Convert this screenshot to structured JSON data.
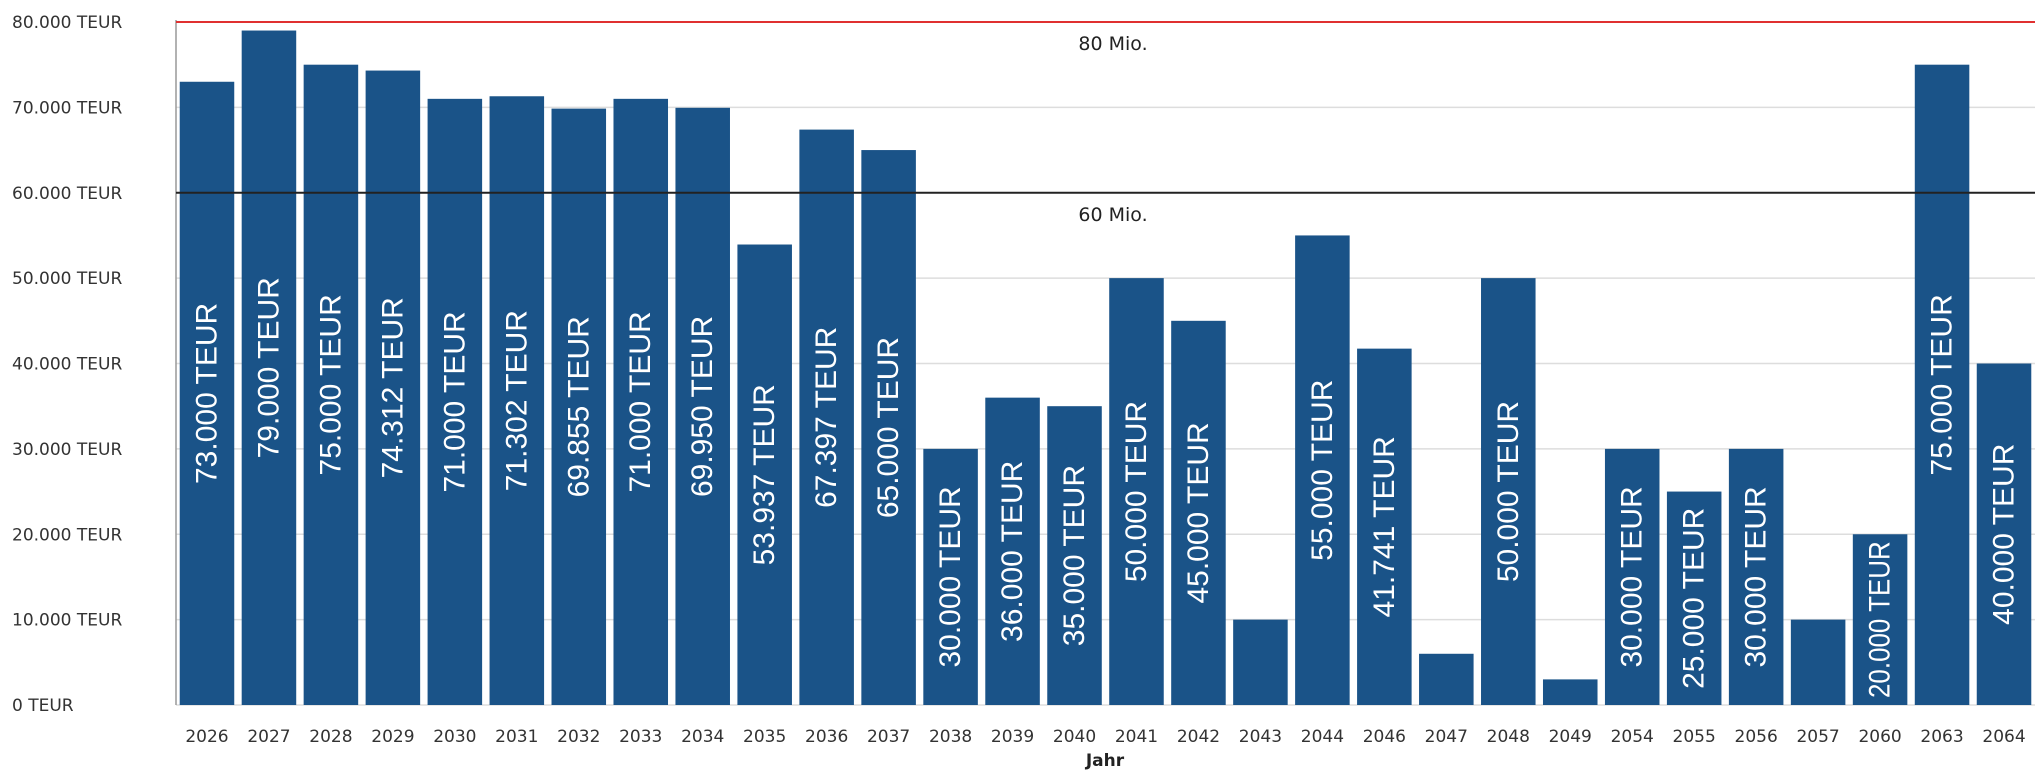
{
  "chart_data": {
    "type": "bar",
    "categories": [
      "2026",
      "2027",
      "2028",
      "2029",
      "2030",
      "2031",
      "2032",
      "2033",
      "2034",
      "2035",
      "2036",
      "2037",
      "2038",
      "2039",
      "2040",
      "2041",
      "2042",
      "2043",
      "2044",
      "2046",
      "2047",
      "2048",
      "2049",
      "2054",
      "2055",
      "2056",
      "2057",
      "2060",
      "2063",
      "2064"
    ],
    "values": [
      73000,
      79000,
      75000,
      74312,
      71000,
      71302,
      69855,
      71000,
      69950,
      53937,
      67397,
      65000,
      30000,
      36000,
      35000,
      50000,
      45000,
      10000,
      55000,
      41741,
      6000,
      50000,
      3000,
      30000,
      25000,
      30000,
      10000,
      20000,
      75000,
      40000
    ],
    "data_labels": [
      "73.000 TEUR",
      "79.000 TEUR",
      "75.000 TEUR",
      "74.312 TEUR",
      "71.000 TEUR",
      "71.302 TEUR",
      "69.855 TEUR",
      "71.000 TEUR",
      "69.950 TEUR",
      "53.937 TEUR",
      "67.397 TEUR",
      "65.000 TEUR",
      "30.000 TEUR",
      "36.000 TEUR",
      "35.000 TEUR",
      "50.000 TEUR",
      "45.000 TEUR",
      "",
      "55.000 TEUR",
      "41.741 TEUR",
      "",
      "50.000 TEUR",
      "",
      "30.000 TEUR",
      "25.000 TEUR",
      "30.000 TEUR",
      "",
      "20.000 TEUR",
      "75.000 TEUR",
      "40.000 TEUR"
    ],
    "xlabel": "Jahr",
    "ylabel": "",
    "ylim": [
      0,
      80000
    ],
    "yticks": [
      0,
      10000,
      20000,
      30000,
      40000,
      50000,
      60000,
      70000,
      80000
    ],
    "ytick_labels": [
      "0 TEUR",
      "10.000 TEUR",
      "20.000 TEUR",
      "30.000 TEUR",
      "40.000 TEUR",
      "50.000 TEUR",
      "60.000 TEUR",
      "70.000 TEUR",
      "80.000 TEUR"
    ],
    "grid": true,
    "reference_lines": [
      {
        "value": 80000,
        "label": "80 Mio.",
        "color": "#e03030"
      },
      {
        "value": 60000,
        "label": "60 Mio.",
        "color": "#222222"
      }
    ],
    "bar_color": "#1a5388"
  }
}
